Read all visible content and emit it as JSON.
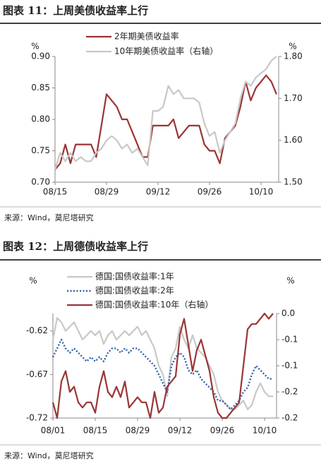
{
  "chart_data": [
    {
      "type": "line",
      "title": "图表 11：上周美债收益率上行",
      "source": "来源：Wind，莫尼塔研究",
      "ylabel": "%",
      "y2label": "%",
      "categories": [
        "08/15",
        null,
        null,
        null,
        null,
        null,
        null,
        null,
        null,
        null,
        "08/29",
        null,
        null,
        null,
        null,
        null,
        null,
        null,
        null,
        null,
        "09/12",
        null,
        null,
        null,
        null,
        null,
        null,
        null,
        null,
        null,
        "09/26",
        null,
        null,
        null,
        null,
        null,
        null,
        null,
        null,
        null,
        "10/10",
        null,
        null,
        null
      ],
      "ylim": [
        0.7,
        0.9
      ],
      "yticks": [
        {
          "value": 0.7,
          "label": "0.70"
        },
        0.75,
        {
          "value": 0.8,
          "label": "0.80"
        },
        0.85,
        {
          "value": 0.9,
          "label": "0.90"
        }
      ],
      "y2lim": [
        1.5,
        1.8
      ],
      "y2ticks": [
        {
          "value": 1.5,
          "label": "1.50"
        },
        {
          "value": 1.6,
          "label": "1.60"
        },
        {
          "value": 1.7,
          "label": "1.70"
        },
        {
          "value": 1.8,
          "label": "1.80"
        }
      ],
      "series": [
        {
          "name": "2年期美债收益率",
          "color": "#9b3434",
          "values": [
            0.72,
            0.73,
            0.76,
            0.73,
            0.76,
            0.76,
            0.76,
            0.76,
            0.74,
            0.79,
            0.84,
            0.83,
            0.82,
            0.8,
            0.8,
            0.78,
            0.76,
            0.74,
            0.74,
            0.79,
            0.79,
            0.79,
            0.79,
            0.8,
            0.77,
            0.78,
            0.79,
            0.79,
            0.79,
            0.76,
            0.75,
            0.75,
            0.73,
            0.77,
            0.78,
            0.79,
            0.82,
            0.86,
            0.83,
            0.85,
            0.86,
            0.87,
            0.86,
            0.84
          ]
        },
        {
          "name": "10年期美债收益率（右轴）",
          "color": "#c8c8c8",
          "axis": "y2",
          "values": [
            1.53,
            1.57,
            1.55,
            1.57,
            1.55,
            1.56,
            1.55,
            1.55,
            1.57,
            1.58,
            1.6,
            1.61,
            1.6,
            1.58,
            1.59,
            1.57,
            1.58,
            1.56,
            1.54,
            1.67,
            1.67,
            1.68,
            1.73,
            1.71,
            1.72,
            1.7,
            1.7,
            1.7,
            1.69,
            1.64,
            1.61,
            1.62,
            1.57,
            1.6,
            1.62,
            1.64,
            1.7,
            1.74,
            1.73,
            1.75,
            1.76,
            1.77,
            1.79,
            1.8
          ]
        }
      ]
    },
    {
      "type": "line",
      "title": "图表 12：上周德债收益率上行",
      "source": "来源：Wind，莫尼塔研究",
      "ylabel": "%",
      "y2label": "%",
      "categories": [
        "08/01",
        null,
        null,
        null,
        null,
        null,
        null,
        null,
        null,
        null,
        "08/15",
        null,
        null,
        null,
        null,
        null,
        null,
        null,
        null,
        null,
        "08/29",
        null,
        null,
        null,
        null,
        null,
        null,
        null,
        null,
        null,
        "09/12",
        null,
        null,
        null,
        null,
        null,
        null,
        null,
        null,
        null,
        "09/26",
        null,
        null,
        null,
        null,
        null,
        null,
        null,
        null,
        null,
        "10/10",
        null,
        null
      ],
      "ylim": [
        -0.72,
        -0.6
      ],
      "yticks": [
        -0.72,
        -0.67,
        -0.62
      ],
      "y2lim": [
        -0.2,
        0.0
      ],
      "y2ticks": [
        {
          "value": -0.2,
          "label": "-0.2"
        },
        {
          "value": -0.15,
          "label": "-0.2"
        },
        {
          "value": -0.1,
          "label": "-0.1"
        },
        {
          "value": -0.05,
          "label": "-0.1"
        },
        {
          "value": 0,
          "label": "0.0"
        }
      ],
      "series": [
        {
          "name": "德国:国债收益率:1年",
          "color": "#c8c8c8",
          "values": [
            -0.63,
            -0.605,
            -0.61,
            -0.62,
            -0.615,
            -0.61,
            -0.62,
            -0.63,
            -0.625,
            -0.62,
            -0.625,
            -0.62,
            -0.635,
            -0.625,
            -0.62,
            -0.63,
            -0.625,
            -0.62,
            -0.625,
            -0.62,
            -0.615,
            -0.625,
            -0.62,
            -0.63,
            -0.64,
            -0.66,
            -0.67,
            -0.695,
            -0.65,
            -0.64,
            -0.615,
            -0.63,
            -0.64,
            -0.625,
            -0.64,
            -0.645,
            -0.65,
            -0.66,
            -0.67,
            -0.69,
            -0.7,
            -0.705,
            -0.71,
            -0.71,
            -0.705,
            -0.7,
            -0.71,
            -0.705,
            -0.69,
            -0.68,
            -0.69,
            -0.695,
            -0.695
          ]
        },
        {
          "name": "德国:国债收益率:2年",
          "color": "#2e5fa8",
          "dash": "dotted",
          "values": [
            -0.65,
            -0.64,
            -0.63,
            -0.64,
            -0.645,
            -0.64,
            -0.645,
            -0.65,
            -0.655,
            -0.65,
            -0.655,
            -0.65,
            -0.655,
            -0.645,
            -0.64,
            -0.64,
            -0.645,
            -0.64,
            -0.645,
            -0.64,
            -0.64,
            -0.645,
            -0.65,
            -0.655,
            -0.66,
            -0.67,
            -0.68,
            -0.69,
            -0.66,
            -0.65,
            -0.645,
            -0.65,
            -0.665,
            -0.67,
            -0.665,
            -0.675,
            -0.68,
            -0.685,
            -0.69,
            -0.7,
            -0.7,
            -0.705,
            -0.71,
            -0.705,
            -0.7,
            -0.69,
            -0.685,
            -0.67,
            -0.66,
            -0.665,
            -0.67,
            -0.675,
            -0.675
          ]
        },
        {
          "name": "德国:国债收益率:10年（右轴）",
          "color": "#9b3434",
          "axis": "y2",
          "values": [
            -0.17,
            -0.2,
            -0.13,
            -0.11,
            -0.15,
            -0.14,
            -0.17,
            -0.18,
            -0.17,
            -0.17,
            -0.19,
            -0.14,
            -0.11,
            -0.15,
            -0.16,
            -0.14,
            -0.16,
            -0.13,
            -0.18,
            -0.17,
            -0.16,
            -0.17,
            -0.17,
            -0.2,
            -0.15,
            -0.19,
            -0.18,
            -0.14,
            -0.13,
            -0.12,
            -0.04,
            -0.01,
            -0.06,
            -0.11,
            -0.07,
            -0.05,
            -0.08,
            -0.11,
            -0.16,
            -0.19,
            -0.2,
            -0.2,
            -0.19,
            -0.18,
            -0.17,
            -0.1,
            -0.03,
            -0.02,
            -0.02,
            -0.01,
            0.0,
            -0.01,
            0.0
          ]
        }
      ]
    }
  ]
}
